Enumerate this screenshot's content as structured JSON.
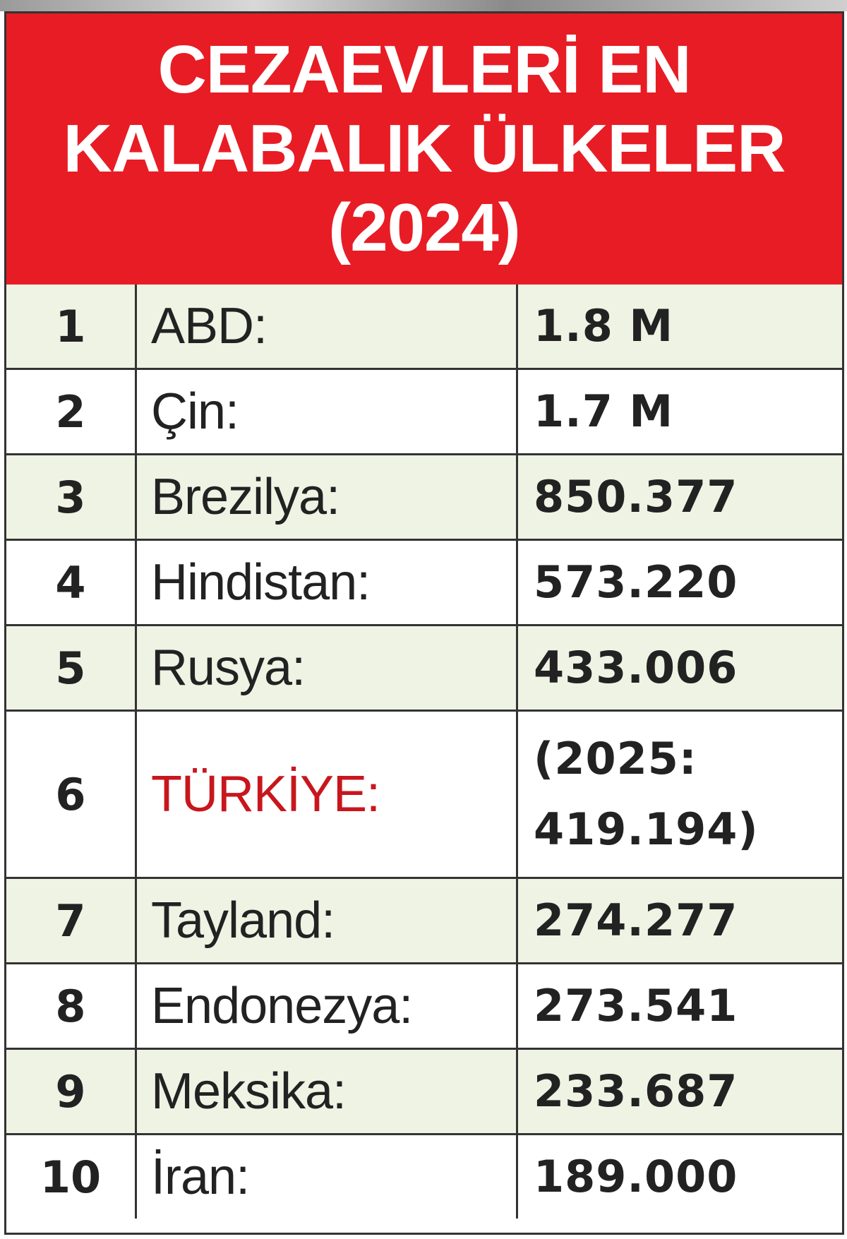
{
  "header": {
    "title_lines": [
      "CEZAEVLERİ EN",
      "KALABALIK ÜLKELER",
      "(2024)"
    ]
  },
  "table": {
    "rows": [
      [
        "1",
        "ABD:",
        "1.8 M"
      ],
      [
        "2",
        "Çin:",
        "1.7 M"
      ],
      [
        "3",
        "Brezilya:",
        "850.377"
      ],
      [
        "4",
        "Hindistan:",
        "573.220"
      ],
      [
        "5",
        "Rusya:",
        "433.006"
      ],
      [
        "6",
        "TÜRKİYE:",
        "(2025: 419.194)"
      ],
      [
        "7",
        "Tayland:",
        "274.277"
      ],
      [
        "8",
        "Endonezya:",
        "273.541"
      ],
      [
        "9",
        "Meksika:",
        "233.687"
      ],
      [
        "10",
        "İran:",
        "189.000"
      ]
    ]
  }
}
